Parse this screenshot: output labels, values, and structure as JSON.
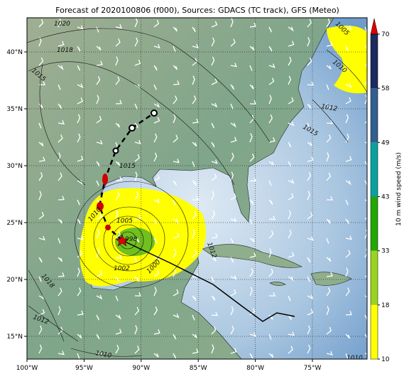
{
  "title": "Forecast of 2020100806 (f000), Sources: GDACS (TC track), GFS (Meteo)",
  "longitude_ticks": [
    {
      "value": -100,
      "label": "100°W"
    },
    {
      "value": -95,
      "label": "95°W"
    },
    {
      "value": -90,
      "label": "90°W"
    },
    {
      "value": -85,
      "label": "85°W"
    },
    {
      "value": -80,
      "label": "80°W"
    },
    {
      "value": -75,
      "label": "75°W"
    }
  ],
  "latitude_ticks": [
    {
      "value": 15,
      "label": "15°N"
    },
    {
      "value": 20,
      "label": "20°N"
    },
    {
      "value": 25,
      "label": "25°N"
    },
    {
      "value": 30,
      "label": "30°N"
    },
    {
      "value": 35,
      "label": "35°N"
    },
    {
      "value": 40,
      "label": "40°N"
    }
  ],
  "colorbar": {
    "label": "10 m wind speed (m/s)",
    "ticks": [
      10,
      18,
      33,
      43,
      49,
      58,
      70
    ],
    "colors": [
      "#ffff00",
      "#99d420",
      "#22a800",
      "#0aa0a0",
      "#2f5f8f",
      "#1b2b5e"
    ],
    "extend_color": "#dd0000"
  },
  "isobar_labels": [
    "1020",
    "1018",
    "1015",
    "1015",
    "1010",
    "1005",
    "998",
    "1002",
    "1000",
    "1012",
    "1018",
    "1012",
    "1010",
    "1012",
    "1015",
    "1010",
    "1005",
    "1010"
  ]
}
